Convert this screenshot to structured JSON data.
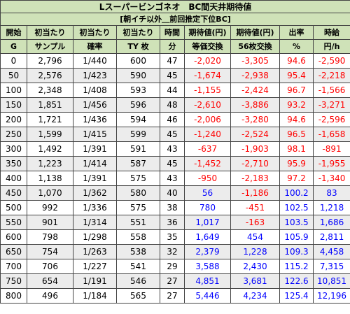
{
  "title": "Lスーパービンゴネオ　BC間天井期待値",
  "subtitle": "[朝イチ以外＿前回推定下位BC]",
  "headers_top": [
    "開始",
    "初当たり",
    "初当たり",
    "初当たり",
    "時間",
    "期待値(円)",
    "期待値(円)",
    "出率",
    "時給"
  ],
  "headers_bottom": [
    "G",
    "サンプル",
    "確率",
    "TY 枚",
    "分",
    "等価交換",
    "56枚交換",
    "%",
    "円/h"
  ],
  "rows": [
    [
      "0",
      "2,796",
      "1/440",
      "600",
      "47",
      "-2,020",
      "-3,305",
      "94.6",
      "-2,590"
    ],
    [
      "50",
      "2,576",
      "1/423",
      "590",
      "45",
      "-1,674",
      "-2,938",
      "95.4",
      "-2,218"
    ],
    [
      "100",
      "2,348",
      "1/408",
      "593",
      "44",
      "-1,155",
      "-2,424",
      "96.7",
      "-1,566"
    ],
    [
      "150",
      "1,851",
      "1/456",
      "596",
      "48",
      "-2,610",
      "-3,886",
      "93.2",
      "-3,271"
    ],
    [
      "200",
      "1,721",
      "1/436",
      "594",
      "46",
      "-2,006",
      "-3,280",
      "94.6",
      "-2,596"
    ],
    [
      "250",
      "1,599",
      "1/415",
      "599",
      "45",
      "-1,240",
      "-2,524",
      "96.5",
      "-1,658"
    ],
    [
      "300",
      "1,492",
      "1/391",
      "591",
      "43",
      "-637",
      "-1,903",
      "98.1",
      "-891"
    ],
    [
      "350",
      "1,223",
      "1/414",
      "587",
      "45",
      "-1,452",
      "-2,710",
      "95.9",
      "-1,955"
    ],
    [
      "400",
      "1,138",
      "1/391",
      "575",
      "43",
      "-950",
      "-2,183",
      "97.2",
      "-1,340"
    ],
    [
      "450",
      "1,070",
      "1/362",
      "580",
      "40",
      "56",
      "-1,186",
      "100.2",
      "83"
    ],
    [
      "500",
      "992",
      "1/336",
      "575",
      "38",
      "780",
      "-451",
      "102.5",
      "1,218"
    ],
    [
      "550",
      "901",
      "1/314",
      "551",
      "36",
      "1,017",
      "-163",
      "103.5",
      "1,686"
    ],
    [
      "600",
      "798",
      "1/298",
      "558",
      "35",
      "1,649",
      "454",
      "105.9",
      "2,811"
    ],
    [
      "650",
      "754",
      "1/263",
      "538",
      "32",
      "2,379",
      "1,228",
      "109.3",
      "4,458"
    ],
    [
      "700",
      "706",
      "1/227",
      "541",
      "29",
      "3,588",
      "2,430",
      "115.2",
      "7,315"
    ],
    [
      "750",
      "654",
      "1/191",
      "546",
      "27",
      "4,851",
      "3,681",
      "122.6",
      "10,851"
    ],
    [
      "800",
      "496",
      "1/184",
      "565",
      "27",
      "5,446",
      "4,234",
      "125.4",
      "12,196"
    ]
  ],
  "colors": {
    "positive": "#0000ff",
    "negative": "#ff0000",
    "header_bg": "#cfe2b8",
    "alt_row_bg": "#ececec"
  }
}
